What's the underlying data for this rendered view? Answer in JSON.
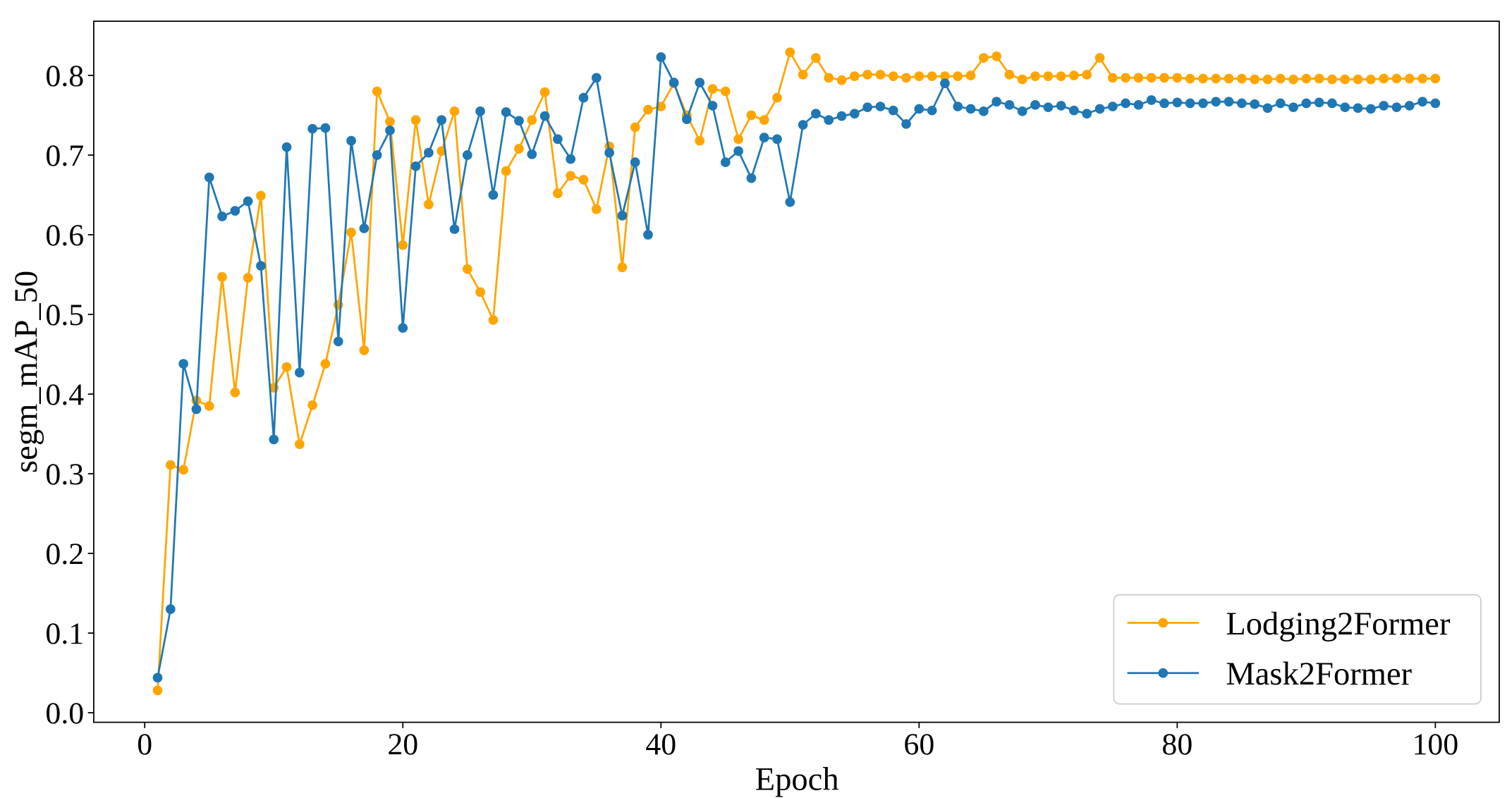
{
  "chart_data": {
    "type": "line",
    "x_label": "Epoch",
    "y_label": "segm_mAP_50",
    "x": [
      1,
      2,
      3,
      4,
      5,
      6,
      7,
      8,
      9,
      10,
      11,
      12,
      13,
      14,
      15,
      16,
      17,
      18,
      19,
      20,
      21,
      22,
      23,
      24,
      25,
      26,
      27,
      28,
      29,
      30,
      31,
      32,
      33,
      34,
      35,
      36,
      37,
      38,
      39,
      40,
      41,
      42,
      43,
      44,
      45,
      46,
      47,
      48,
      49,
      50,
      51,
      52,
      53,
      54,
      55,
      56,
      57,
      58,
      59,
      60,
      61,
      62,
      63,
      64,
      65,
      66,
      67,
      68,
      69,
      70,
      71,
      72,
      73,
      74,
      75,
      76,
      77,
      78,
      79,
      80,
      81,
      82,
      83,
      84,
      85,
      86,
      87,
      88,
      89,
      90,
      91,
      92,
      93,
      94,
      95,
      96,
      97,
      98,
      99,
      100
    ],
    "series": [
      {
        "name": "Lodging2Former",
        "color": "#ffa500",
        "values": [
          0.028,
          0.311,
          0.305,
          0.392,
          0.385,
          0.547,
          0.402,
          0.546,
          0.649,
          0.408,
          0.434,
          0.337,
          0.386,
          0.438,
          0.512,
          0.603,
          0.455,
          0.78,
          0.742,
          0.587,
          0.744,
          0.638,
          0.705,
          0.755,
          0.557,
          0.528,
          0.493,
          0.68,
          0.708,
          0.744,
          0.779,
          0.652,
          0.674,
          0.669,
          0.632,
          0.711,
          0.559,
          0.735,
          0.757,
          0.761,
          0.79,
          0.75,
          0.718,
          0.783,
          0.78,
          0.72,
          0.75,
          0.744,
          0.772,
          0.829,
          0.801,
          0.822,
          0.797,
          0.794,
          0.799,
          0.801,
          0.801,
          0.799,
          0.797,
          0.799,
          0.799,
          0.799,
          0.799,
          0.8,
          0.822,
          0.824,
          0.801,
          0.795,
          0.799,
          0.799,
          0.799,
          0.8,
          0.801,
          0.822,
          0.797,
          0.797,
          0.797,
          0.797,
          0.797,
          0.797,
          0.796,
          0.796,
          0.796,
          0.796,
          0.796,
          0.795,
          0.795,
          0.796,
          0.795,
          0.796,
          0.796,
          0.795,
          0.795,
          0.795,
          0.795,
          0.796,
          0.796,
          0.796,
          0.796,
          0.796
        ]
      },
      {
        "name": "Mask2Former",
        "color": "#1f77b4",
        "values": [
          0.044,
          0.13,
          0.438,
          0.381,
          0.672,
          0.623,
          0.63,
          0.642,
          0.561,
          0.343,
          0.71,
          0.427,
          0.733,
          0.734,
          0.466,
          0.718,
          0.608,
          0.7,
          0.731,
          0.483,
          0.686,
          0.703,
          0.744,
          0.607,
          0.7,
          0.755,
          0.65,
          0.754,
          0.743,
          0.701,
          0.749,
          0.72,
          0.695,
          0.772,
          0.797,
          0.703,
          0.624,
          0.691,
          0.6,
          0.823,
          0.791,
          0.745,
          0.791,
          0.762,
          0.691,
          0.705,
          0.671,
          0.722,
          0.72,
          0.641,
          0.738,
          0.752,
          0.744,
          0.749,
          0.752,
          0.76,
          0.761,
          0.756,
          0.739,
          0.758,
          0.756,
          0.79,
          0.761,
          0.758,
          0.755,
          0.767,
          0.763,
          0.755,
          0.763,
          0.76,
          0.762,
          0.756,
          0.752,
          0.758,
          0.761,
          0.765,
          0.763,
          0.769,
          0.765,
          0.766,
          0.765,
          0.765,
          0.767,
          0.767,
          0.765,
          0.764,
          0.759,
          0.765,
          0.76,
          0.765,
          0.766,
          0.765,
          0.76,
          0.759,
          0.758,
          0.762,
          0.76,
          0.762,
          0.767,
          0.765
        ]
      }
    ],
    "xlim": [
      -3.95,
      104.95
    ],
    "ylim": [
      -0.012,
      0.868
    ],
    "xticks": [
      0,
      20,
      40,
      60,
      80,
      100
    ],
    "yticks": [
      {
        "value": 0,
        "label": "0.0"
      },
      0.1,
      0.2,
      0.3,
      0.4,
      0.5,
      0.6,
      0.7,
      0.8
    ],
    "grid": false,
    "legend": "lower-right"
  }
}
